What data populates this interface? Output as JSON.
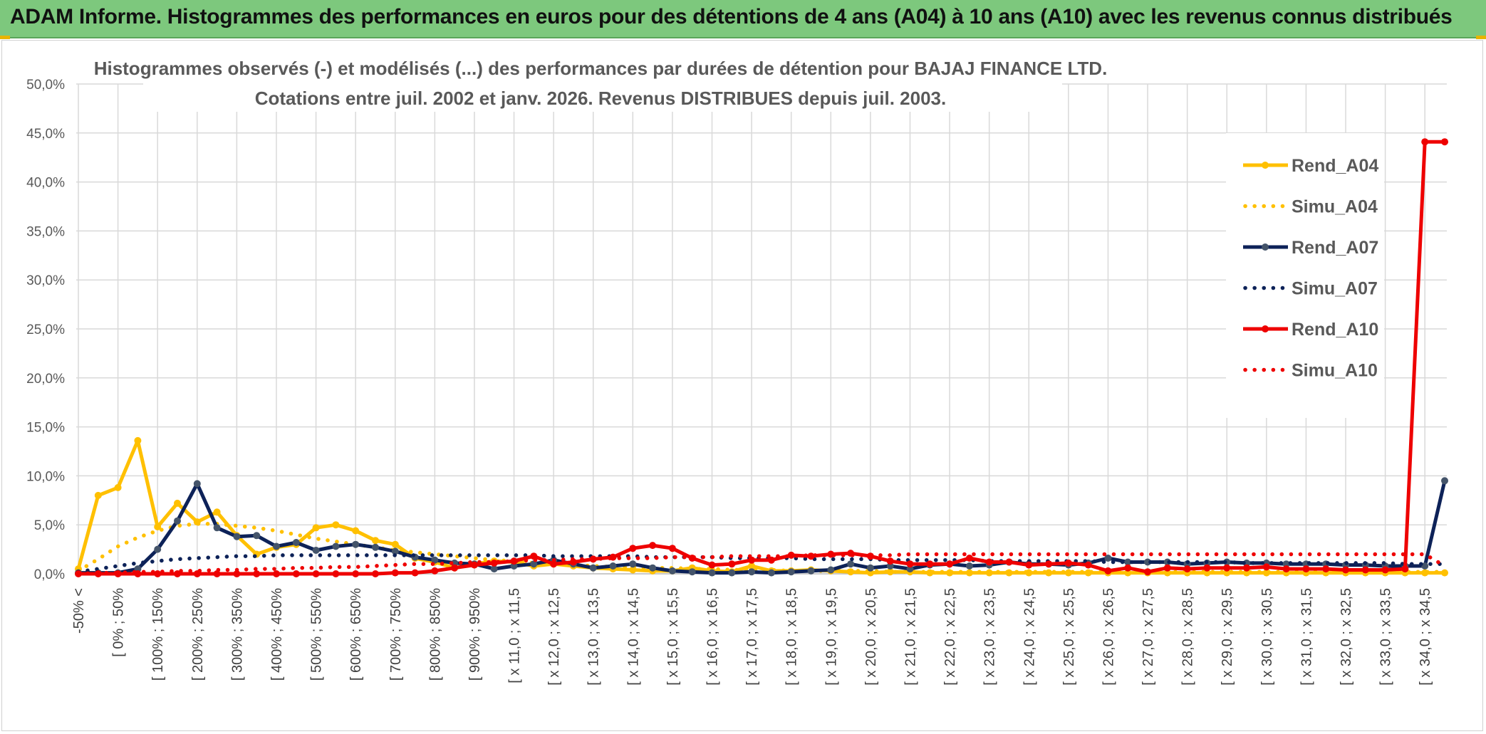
{
  "header": {
    "title": "ADAM Informe. Histogrammes des performances en euros pour des détentions de 4 ans (A04) à 10 ans (A10) avec les revenus connus distribués"
  },
  "chart_data": {
    "type": "line",
    "title_line1": "Histogrammes observés (-) et modélisés (...) des performances par durées de détention pour BAJAJ FINANCE LTD.",
    "title_line2": "Cotations entre juil. 2002 et janv. 2026. Revenus DISTRIBUES depuis juil. 2003.",
    "ylim": [
      0,
      50
    ],
    "yticks": [
      "0,0%",
      "5,0%",
      "10,0%",
      "15,0%",
      "20,0%",
      "25,0%",
      "30,0%",
      "35,0%",
      "40,0%",
      "45,0%",
      "50,0%"
    ],
    "n_points": 70,
    "xtick_labels": [
      "-50% <",
      "[ 0% ; 50%",
      "[ 100% ; 150%",
      "[ 200% ; 250%",
      "[ 300% ; 350%",
      "[ 400% ; 450%",
      "[ 500% ; 550%",
      "[ 600% ; 650%",
      "[ 700% ; 750%",
      "[ 800% ; 850%",
      "[ 900% ; 950%",
      "[ x 11,0 ; x 11,5",
      "[ x 12,0 ; x 12,5",
      "[ x 13,0 ; x 13,5",
      "[ x 14,0 ; x 14,5",
      "[ x 15,0 ; x 15,5",
      "[ x 16,0 ; x 16,5",
      "[ x 17,0 ; x 17,5",
      "[ x 18,0 ; x 18,5",
      "[ x 19,0 ; x 19,5",
      "[ x 20,0 ; x 20,5",
      "[ x 21,0 ; x 21,5",
      "[ x 22,0 ; x 22,5",
      "[ x 23,0 ; x 23,5",
      "[ x 24,0 ; x 24,5",
      "[ x 25,0 ; x 25,5",
      "[ x 26,0 ; x 26,5",
      "[ x 27,0 ; x 27,5",
      "[ x 28,0 ; x 28,5",
      "[ x 29,0 ; x 29,5",
      "[ x 30,0 ; x 30,5",
      "[ x 31,0 ; x 31,5",
      "[ x 32,0 ; x 32,5",
      "[ x 33,0 ; x 33,5",
      "[ x 34,0 ; x 34,5"
    ],
    "series": [
      {
        "name": "Rend_A04",
        "color": "#ffc000",
        "style": "solid",
        "values": [
          0.5,
          8.0,
          8.8,
          13.6,
          4.8,
          7.2,
          5.3,
          6.3,
          3.9,
          2.0,
          2.7,
          3.0,
          4.7,
          5.0,
          4.4,
          3.4,
          3.0,
          1.6,
          1.2,
          0.6,
          1.0,
          1.3,
          1.2,
          0.8,
          1.0,
          0.8,
          0.6,
          0.5,
          0.4,
          0.3,
          0.3,
          0.6,
          0.3,
          0.2,
          0.8,
          0.3,
          0.3,
          0.4,
          0.3,
          0.2,
          0.1,
          0.2,
          0.2,
          0.1,
          0.1,
          0.1,
          0.1,
          0.1,
          0.1,
          0.1,
          0.1,
          0.1,
          0.1,
          0.1,
          0.1,
          0.1,
          0.1,
          0.1,
          0.1,
          0.1,
          0.1,
          0.1,
          0.1,
          0.1,
          0.1,
          0.1,
          0.1,
          0.1,
          0.1,
          0.1
        ]
      },
      {
        "name": "Simu_A04",
        "color": "#ffc000",
        "style": "dotted",
        "values": [
          0.3,
          1.5,
          2.8,
          3.7,
          4.4,
          4.9,
          5.1,
          5.1,
          4.9,
          4.7,
          4.4,
          4.0,
          3.6,
          3.3,
          3.0,
          2.7,
          2.4,
          2.2,
          2.0,
          1.8,
          1.6,
          1.4,
          1.3,
          1.1,
          1.0,
          0.9,
          0.8,
          0.7,
          0.7,
          0.6,
          0.6,
          0.5,
          0.5,
          0.4,
          0.4,
          0.4,
          0.3,
          0.3,
          0.3,
          0.3,
          0.3,
          0.2,
          0.2,
          0.2,
          0.2,
          0.2,
          0.2,
          0.2,
          0.2,
          0.2,
          0.2,
          0.2,
          0.2,
          0.2,
          0.2,
          0.2,
          0.2,
          0.2,
          0.2,
          0.2,
          0.2,
          0.2,
          0.2,
          0.2,
          0.2,
          0.2,
          0.2,
          0.2,
          0.2,
          0.2
        ]
      },
      {
        "name": "Rend_A07",
        "color": "#0d2258",
        "style": "solid",
        "values": [
          0.1,
          0.1,
          0.1,
          0.5,
          2.5,
          5.4,
          9.2,
          4.7,
          3.8,
          3.9,
          2.8,
          3.2,
          2.4,
          2.8,
          3.0,
          2.7,
          2.3,
          1.7,
          1.4,
          1.1,
          1.0,
          0.5,
          0.8,
          1.0,
          1.4,
          1.0,
          0.6,
          0.8,
          1.0,
          0.6,
          0.3,
          0.2,
          0.1,
          0.1,
          0.2,
          0.1,
          0.2,
          0.3,
          0.4,
          1.0,
          0.6,
          0.8,
          0.5,
          0.9,
          1.0,
          0.8,
          0.9,
          1.2,
          1.0,
          1.0,
          0.9,
          1.1,
          1.6,
          1.2,
          1.2,
          1.2,
          1.0,
          1.1,
          1.2,
          1.1,
          1.1,
          1.0,
          1.0,
          1.0,
          0.9,
          0.9,
          0.8,
          0.8,
          0.8,
          9.5
        ]
      },
      {
        "name": "Simu_A07",
        "color": "#0d2258",
        "style": "dotted",
        "values": [
          0.2,
          0.5,
          0.8,
          1.1,
          1.3,
          1.5,
          1.6,
          1.7,
          1.8,
          1.8,
          1.9,
          1.9,
          1.9,
          1.9,
          1.9,
          1.9,
          1.9,
          1.9,
          1.9,
          1.9,
          1.9,
          1.9,
          1.9,
          1.9,
          1.8,
          1.8,
          1.8,
          1.8,
          1.8,
          1.7,
          1.7,
          1.7,
          1.7,
          1.6,
          1.6,
          1.6,
          1.6,
          1.5,
          1.5,
          1.5,
          1.5,
          1.4,
          1.4,
          1.4,
          1.4,
          1.4,
          1.3,
          1.3,
          1.3,
          1.3,
          1.3,
          1.3,
          1.2,
          1.2,
          1.2,
          1.2,
          1.2,
          1.2,
          1.2,
          1.1,
          1.1,
          1.1,
          1.1,
          1.1,
          1.1,
          1.1,
          1.1,
          1.0,
          1.0,
          1.0
        ]
      },
      {
        "name": "Rend_A10",
        "color": "#ee0000",
        "style": "solid",
        "values": [
          0.0,
          0.0,
          0.0,
          0.0,
          0.0,
          0.0,
          0.0,
          0.0,
          0.0,
          0.0,
          0.0,
          0.0,
          0.0,
          0.0,
          0.0,
          0.0,
          0.1,
          0.1,
          0.3,
          0.6,
          0.9,
          1.1,
          1.3,
          1.8,
          1.0,
          1.2,
          1.5,
          1.7,
          2.6,
          2.9,
          2.6,
          1.6,
          0.9,
          1.0,
          1.4,
          1.4,
          1.9,
          1.8,
          2.0,
          2.1,
          1.8,
          1.3,
          1.0,
          1.0,
          1.0,
          1.6,
          1.2,
          1.2,
          0.9,
          1.0,
          1.1,
          0.9,
          0.3,
          0.6,
          0.2,
          0.6,
          0.5,
          0.6,
          0.6,
          0.6,
          0.7,
          0.5,
          0.5,
          0.5,
          0.4,
          0.4,
          0.4,
          0.5,
          44.1,
          44.1
        ]
      },
      {
        "name": "Simu_A10",
        "color": "#ee0000",
        "style": "dotted",
        "values": [
          0.0,
          0.1,
          0.1,
          0.2,
          0.2,
          0.3,
          0.3,
          0.4,
          0.4,
          0.5,
          0.5,
          0.6,
          0.6,
          0.7,
          0.7,
          0.8,
          0.9,
          1.0,
          1.0,
          1.1,
          1.2,
          1.2,
          1.3,
          1.4,
          1.4,
          1.5,
          1.5,
          1.6,
          1.6,
          1.6,
          1.7,
          1.7,
          1.7,
          1.8,
          1.8,
          1.8,
          1.8,
          1.9,
          1.9,
          1.9,
          1.9,
          1.9,
          2.0,
          2.0,
          2.0,
          2.0,
          2.0,
          2.0,
          2.0,
          2.0,
          2.0,
          2.0,
          2.0,
          2.0,
          2.0,
          2.0,
          2.0,
          2.0,
          2.0,
          2.0,
          2.0,
          2.0,
          2.0,
          2.0,
          2.0,
          2.0,
          2.0,
          2.0,
          2.0,
          0.8
        ]
      }
    ]
  }
}
